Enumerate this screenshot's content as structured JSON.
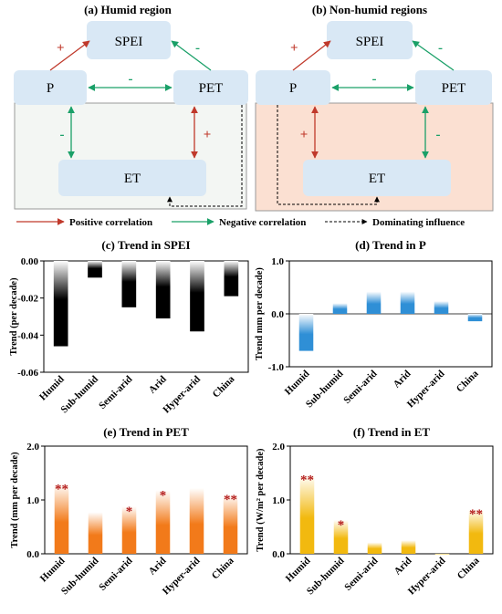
{
  "diagrams": [
    {
      "title": "(a) Humid region",
      "nodes": {
        "spei": "SPEI",
        "p": "P",
        "pet": "PET",
        "et": "ET"
      },
      "signs": {
        "p_spei": "+",
        "pet_spei": "-",
        "p_pet": "-",
        "p_et": "-",
        "pet_et": "+"
      }
    },
    {
      "title": "(b) Non-humid regions",
      "nodes": {
        "spei": "SPEI",
        "p": "P",
        "pet": "PET",
        "et": "ET"
      },
      "signs": {
        "p_spei": "+",
        "pet_spei": "-",
        "p_pet": "-",
        "p_et": "+",
        "pet_et": "-"
      }
    }
  ],
  "legend": {
    "positive": "Positive correlation",
    "negative": "Negative correlation",
    "dominating": "Dominating influence"
  },
  "colors": {
    "positive": "#c0392b",
    "negative": "#1aa068",
    "node_fill": "#d9e8f5",
    "humid_bg": "#f3f6f3",
    "nonhumid_bg": "#fbe0d2"
  },
  "chart_data": [
    {
      "type": "bar",
      "title": "(c) Trend in SPEI",
      "ylabel": "Trend (per decade)",
      "categories": [
        "Humid",
        "Sub-humid",
        "Semi-arid",
        "Arid",
        "Hyper-arid",
        "China"
      ],
      "values": [
        -0.046,
        -0.009,
        -0.025,
        -0.031,
        -0.038,
        -0.019
      ],
      "ylim": [
        -0.06,
        0.0
      ],
      "yticks": [
        "0.00",
        "-0.02",
        "-0.04",
        "-0.06"
      ],
      "ytick_values": [
        0.0,
        -0.02,
        -0.04,
        -0.06
      ],
      "significance": [
        "",
        "",
        "",
        "",
        "",
        ""
      ],
      "color": "#000000"
    },
    {
      "type": "bar",
      "title": "(d) Trend in P",
      "ylabel": "Trend mm per decade)",
      "categories": [
        "Humid",
        "Sub-humid",
        "Semi-arid",
        "Arid",
        "Hyper-arid",
        "China"
      ],
      "values": [
        -0.7,
        0.2,
        0.42,
        0.42,
        0.24,
        -0.14
      ],
      "ylim": [
        -1.0,
        1.0
      ],
      "yticks": [
        "1.0",
        "0.0",
        "-1.0"
      ],
      "ytick_values": [
        1.0,
        0.0,
        -1.0
      ],
      "significance": [
        "",
        "",
        "",
        "",
        "",
        ""
      ],
      "color": "#2f8fd6"
    },
    {
      "type": "bar",
      "title": "(e) Trend in PET",
      "ylabel": "Trend (mm per decade)",
      "categories": [
        "Humid",
        "Sub-humid",
        "Semi-arid",
        "Arid",
        "Hyper-arid",
        "China"
      ],
      "values": [
        1.3,
        0.77,
        0.88,
        1.18,
        1.22,
        1.1
      ],
      "ylim": [
        0.0,
        2.0
      ],
      "yticks": [
        "2.0",
        "1.0",
        "0.0"
      ],
      "ytick_values": [
        2.0,
        1.0,
        0.0
      ],
      "significance": [
        "**",
        "",
        "*",
        "*",
        "",
        "**"
      ],
      "color": "#f27a1a"
    },
    {
      "type": "bar",
      "title": "(f) Trend in ET",
      "ylabel": "Trend (W/m² per decade)",
      "categories": [
        "Humid",
        "Sub-humid",
        "Semi-arid",
        "Arid",
        "Hyper-arid",
        "China"
      ],
      "values": [
        1.47,
        0.63,
        0.21,
        0.25,
        0.0,
        0.83
      ],
      "ylim": [
        0.0,
        2.0
      ],
      "yticks": [
        "2.0",
        "1.0",
        "0.0"
      ],
      "ytick_values": [
        2.0,
        1.0,
        0.0
      ],
      "significance": [
        "**",
        "*",
        "",
        "",
        "",
        "**"
      ],
      "color": "#f2b90f"
    }
  ]
}
